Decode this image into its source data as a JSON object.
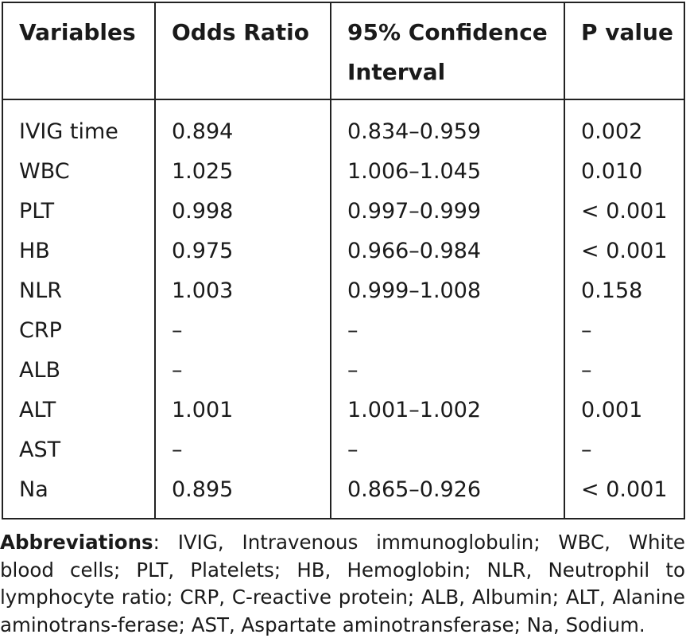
{
  "table": {
    "headers": [
      "Variables",
      "Odds Ratio",
      "95% Confidence Interval",
      "P value"
    ],
    "rows": [
      [
        "IVIG time",
        "0.894",
        "0.834–0.959",
        "0.002"
      ],
      [
        "WBC",
        "1.025",
        "1.006–1.045",
        "0.010"
      ],
      [
        "PLT",
        "0.998",
        "0.997–0.999",
        "< 0.001"
      ],
      [
        "HB",
        "0.975",
        "0.966–0.984",
        "< 0.001"
      ],
      [
        "NLR",
        "1.003",
        "0.999–1.008",
        "0.158"
      ],
      [
        "CRP",
        "–",
        "–",
        "–"
      ],
      [
        "ALB",
        "–",
        "–",
        "–"
      ],
      [
        "ALT",
        "1.001",
        "1.001–1.002",
        "0.001"
      ],
      [
        "AST",
        "–",
        "–",
        "–"
      ],
      [
        "Na",
        "0.895",
        "0.865–0.926",
        "< 0.001"
      ]
    ]
  },
  "footnote": {
    "label": "Abbreviations",
    "text": ": IVIG, Intravenous immunoglobulin; WBC, White blood cells; PLT, Platelets; HB, Hemoglobin; NLR, Neutrophil to lymphocyte ratio; CRP, C-reactive protein; ALB, Albumin; ALT, Alanine aminotrans-ferase; AST, Aspartate aminotransferase; Na, Sodium."
  }
}
